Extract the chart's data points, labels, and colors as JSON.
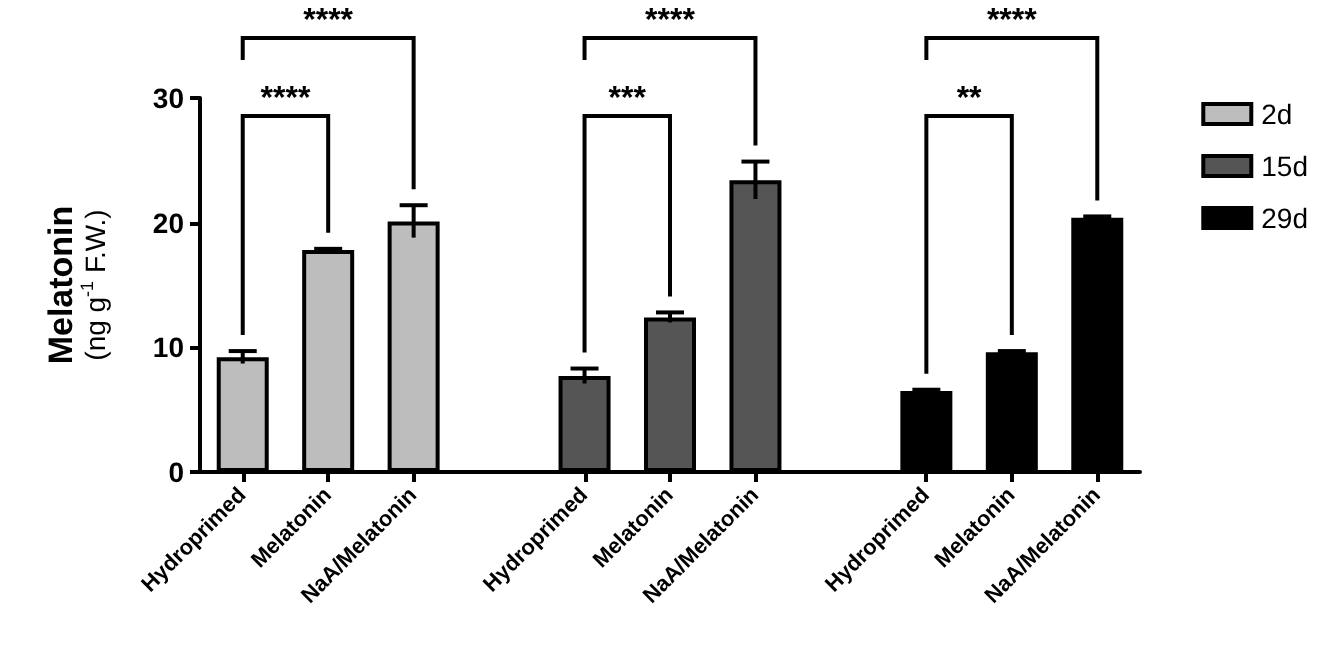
{
  "chart_data": {
    "type": "bar",
    "categories": [
      "Hydroprimed",
      "Melatonin",
      "NaA/Melatonin",
      null,
      "Hydroprimed",
      "Melatonin",
      "NaA/Melatonin",
      null,
      "Hydroprimed",
      "Melatonin",
      "NaA/Melatonin"
    ],
    "series": [
      {
        "name": "2d",
        "color": "#bdbdbd",
        "values": [
          9.2,
          17.8,
          20.1,
          null,
          null,
          null,
          null,
          null,
          null,
          null,
          null
        ],
        "errors": [
          0.5,
          0.1,
          1.3,
          null,
          null,
          null,
          null,
          null,
          null,
          null,
          null
        ]
      },
      {
        "name": "15d",
        "color": "#555555",
        "values": [
          null,
          null,
          null,
          null,
          7.7,
          12.4,
          23.4,
          null,
          null,
          null,
          null
        ],
        "errors": [
          null,
          null,
          null,
          null,
          0.6,
          0.4,
          1.5,
          null,
          null,
          null,
          null
        ]
      },
      {
        "name": "29d",
        "color": "#000000",
        "values": [
          null,
          null,
          null,
          null,
          null,
          null,
          null,
          null,
          6.5,
          9.6,
          20.4
        ],
        "errors": [
          null,
          null,
          null,
          null,
          null,
          null,
          null,
          null,
          0.1,
          0.1,
          0.1
        ]
      }
    ],
    "ylabel": "Melatonin\n(ng g$^{-1}$ F.W.)",
    "ylim": [
      0,
      30
    ],
    "yticks": [
      0,
      10,
      20,
      30
    ],
    "annotations": [
      "****",
      "****",
      "***",
      "****",
      "**",
      "****"
    ],
    "legend": "right",
    "grid": false
  }
}
